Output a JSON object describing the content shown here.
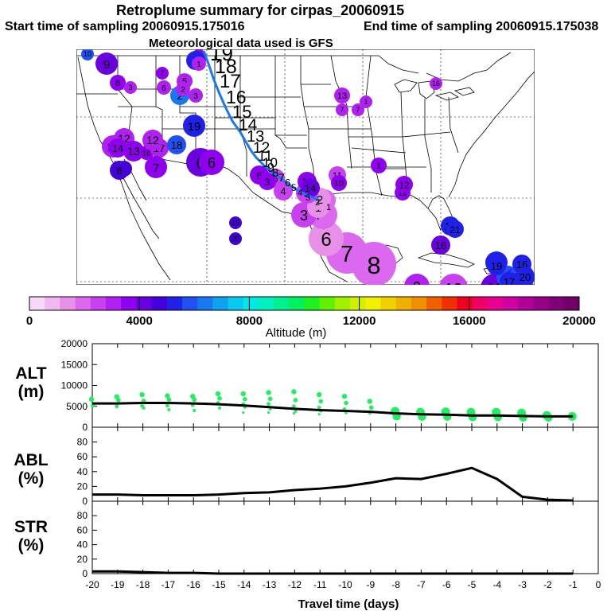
{
  "title": "Retroplume summary for cirpas_20060915",
  "start_label": "Start time of sampling 20060915.175016",
  "end_label": "End time of sampling 20060915.175038",
  "met_label": "Meteorological data used is GFS",
  "colorbar": {
    "ticks": [
      "0",
      "4000",
      "8000",
      "12000",
      "16000",
      "20000"
    ],
    "label": "Altitude (m)",
    "colors": [
      "#f8d8f8",
      "#f0b8f0",
      "#e890e8",
      "#dc68f0",
      "#c840f0",
      "#b020f0",
      "#9000f0",
      "#6a00e0",
      "#4400d8",
      "#2020e8",
      "#2050f0",
      "#1878f0",
      "#10a0f0",
      "#08c8f0",
      "#00e8e8",
      "#00f0c0",
      "#00f090",
      "#00f060",
      "#20f020",
      "#60f000",
      "#a0f000",
      "#d0f000",
      "#f0f000",
      "#f0d000",
      "#f0b000",
      "#f09000",
      "#f06000",
      "#f03000",
      "#f00020",
      "#f00060",
      "#e80090",
      "#d000a0",
      "#b00098",
      "#980088",
      "#800078",
      "#700068"
    ]
  },
  "map_markers": [
    {
      "label": "9"
    },
    {
      "label": "8"
    },
    {
      "label": "7"
    },
    {
      "label": "6"
    },
    {
      "label": "5"
    },
    {
      "label": "4"
    },
    {
      "label": "3"
    },
    {
      "label": "2"
    },
    {
      "label": "1"
    },
    {
      "label": "2"
    },
    {
      "label": "3"
    },
    {
      "label": "1"
    },
    {
      "label": "10"
    },
    {
      "label": "11"
    },
    {
      "label": "12"
    },
    {
      "label": "13"
    },
    {
      "label": "14"
    },
    {
      "label": "15"
    },
    {
      "label": "16"
    },
    {
      "label": "17"
    },
    {
      "label": "18"
    },
    {
      "label": "19"
    },
    {
      "label": "6"
    },
    {
      "label": "7"
    },
    {
      "label": "8"
    },
    {
      "label": "9"
    },
    {
      "label": "10"
    },
    {
      "label": "11"
    },
    {
      "label": "12"
    },
    {
      "label": "13"
    },
    {
      "label": "14"
    },
    {
      "label": "15"
    },
    {
      "label": "16"
    },
    {
      "label": "17"
    },
    {
      "label": "18"
    },
    {
      "label": "19"
    },
    {
      "label": "20"
    },
    {
      "label": "16"
    },
    {
      "label": "13"
    },
    {
      "label": "12"
    },
    {
      "label": "11"
    },
    {
      "label": "10"
    },
    {
      "label": "9"
    },
    {
      "label": "8"
    },
    {
      "label": "7"
    },
    {
      "label": "6"
    },
    {
      "label": "5"
    },
    {
      "label": "4"
    },
    {
      "label": "3"
    },
    {
      "label": "1"
    },
    {
      "label": "2"
    },
    {
      "label": "3"
    },
    {
      "label": "4"
    },
    {
      "label": "5"
    },
    {
      "label": "6"
    },
    {
      "label": "6"
    },
    {
      "label": "1"
    },
    {
      "label": "1"
    },
    {
      "label": "7"
    },
    {
      "label": "7"
    },
    {
      "label": "3"
    },
    {
      "label": "16"
    },
    {
      "label": "17"
    },
    {
      "label": "11"
    },
    {
      "label": "12"
    },
    {
      "label": "13"
    },
    {
      "label": "14"
    },
    {
      "label": "15"
    },
    {
      "label": "20"
    },
    {
      "label": "21"
    }
  ],
  "plume_path_labels": [
    "19",
    "18",
    "17",
    "16",
    "15",
    "14",
    "13",
    "12",
    "11",
    "10",
    "9",
    "8",
    "7",
    "6",
    "5",
    "4",
    "3",
    "2",
    "1"
  ],
  "chart_data": [
    {
      "type": "line",
      "panel": "ALT",
      "ylabel": "ALT\n(m)",
      "ylim": [
        0,
        20000
      ],
      "yticks": [
        "0",
        "5000",
        "10000",
        "15000",
        "20000"
      ],
      "xlim": [
        -20,
        0
      ],
      "x": [
        -20,
        -19,
        -18,
        -17,
        -16,
        -15,
        -14,
        -13,
        -12,
        -11,
        -10,
        -9,
        -8,
        -7,
        -6,
        -5,
        -4,
        -3,
        -2,
        -1
      ],
      "median": [
        5700,
        5700,
        5800,
        5800,
        5700,
        5500,
        5200,
        4800,
        4400,
        4100,
        3900,
        3700,
        3300,
        3100,
        3000,
        2800,
        2800,
        2700,
        2600,
        2600
      ],
      "scatter": [
        {
          "x": -20,
          "y": [
            6700,
            5200
          ]
        },
        {
          "x": -19,
          "y": [
            7300,
            6500,
            5000
          ]
        },
        {
          "x": -18,
          "y": [
            7800,
            6300,
            5100,
            4600
          ]
        },
        {
          "x": -17,
          "y": [
            7500,
            6600,
            5200,
            4200
          ]
        },
        {
          "x": -16,
          "y": [
            7400,
            6600,
            5300,
            4000
          ]
        },
        {
          "x": -15,
          "y": [
            8000,
            6900,
            5800,
            4600
          ]
        },
        {
          "x": -14,
          "y": [
            8000,
            6700,
            5500,
            4800,
            3500
          ]
        },
        {
          "x": -13,
          "y": [
            8300,
            6800,
            5600,
            4400,
            3500
          ]
        },
        {
          "x": -12,
          "y": [
            8500,
            6500,
            5000,
            3800,
            3300
          ]
        },
        {
          "x": -11,
          "y": [
            7800,
            6200,
            4700,
            3900,
            3100
          ]
        },
        {
          "x": -10,
          "y": [
            7400,
            5800,
            4300,
            3500
          ]
        },
        {
          "x": -9,
          "y": [
            6200,
            4700,
            3500
          ]
        },
        {
          "x": -8,
          "y": [
            3800,
            2600
          ]
        },
        {
          "x": -7,
          "y": [
            3600,
            2500
          ]
        },
        {
          "x": -6,
          "y": [
            3700,
            2500
          ]
        },
        {
          "x": -5,
          "y": [
            3600,
            2400
          ]
        },
        {
          "x": -4,
          "y": [
            3600,
            2400
          ]
        },
        {
          "x": -3,
          "y": [
            3400,
            2300
          ]
        },
        {
          "x": -2,
          "y": [
            2800,
            2300
          ]
        },
        {
          "x": -1,
          "y": [
            2600
          ]
        }
      ]
    },
    {
      "type": "line",
      "panel": "ABL",
      "ylabel": "ABL\n(%)",
      "ylim": [
        0,
        100
      ],
      "yticks": [
        "0",
        "20",
        "40",
        "60",
        "80"
      ],
      "xlim": [
        -20,
        0
      ],
      "x": [
        -20,
        -19,
        -18,
        -17,
        -16,
        -15,
        -14,
        -13,
        -12,
        -11,
        -10,
        -9,
        -8,
        -7,
        -6,
        -5,
        -4,
        -3,
        -2,
        -1
      ],
      "values": [
        9,
        9,
        8,
        8,
        8,
        9,
        11,
        12,
        15,
        17,
        20,
        25,
        31,
        30,
        37,
        45,
        30,
        6,
        2,
        1
      ]
    },
    {
      "type": "line",
      "panel": "STR",
      "ylabel": "STR\n(%)",
      "ylim": [
        0,
        100
      ],
      "yticks": [
        "0",
        "20",
        "40",
        "60",
        "80"
      ],
      "xlim": [
        -20,
        0
      ],
      "x": [
        -20,
        -19,
        -18,
        -17,
        -16,
        -15,
        -14,
        -13,
        -12,
        -11,
        -10,
        -9,
        -8,
        -7,
        -6,
        -5,
        -4,
        -3,
        -2,
        -1
      ],
      "values": [
        3,
        3,
        2,
        1,
        1,
        0,
        0,
        0,
        0,
        0,
        0,
        0,
        0,
        0,
        0,
        0,
        0,
        0,
        0,
        0
      ],
      "xticks": [
        "-20",
        "-19",
        "-18",
        "-17",
        "-16",
        "-15",
        "-14",
        "-13",
        "-12",
        "-11",
        "-10",
        "-9",
        "-8",
        "-7",
        "-6",
        "-5",
        "-4",
        "-3",
        "-2",
        "-1",
        "0"
      ],
      "xlabel": "Travel time (days)"
    }
  ]
}
